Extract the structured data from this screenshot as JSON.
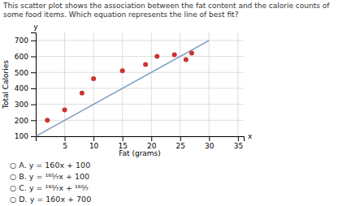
{
  "chart_data": {
    "type": "scatter",
    "title": "This scatter plot shows the association between the fat content and the calorie counts of some food items. Which equation represents the line of best fit?",
    "x_label": "Fat (grams)",
    "y_label": "Total Calories",
    "series": [
      {
        "type": "scatter",
        "color": "#cc3333",
        "marker": "circle",
        "x": [
          2,
          5,
          8,
          10,
          15,
          19,
          21,
          24,
          26,
          27
        ],
        "values": [
          200,
          265,
          370,
          460,
          510,
          550,
          600,
          610,
          580,
          620
        ]
      },
      {
        "type": "line",
        "color": "#7799bb",
        "line_style": "solid",
        "x": [
          0,
          30
        ],
        "values": [
          100,
          700
        ]
      }
    ],
    "xlim": [
      0,
      36
    ],
    "ylim": [
      100,
      750
    ],
    "xticks": [
      5,
      10,
      15,
      20,
      25,
      30,
      35
    ],
    "yticks": [
      100,
      200,
      300,
      400,
      500,
      600,
      700
    ],
    "grid": true,
    "annotations": [
      "x",
      "y",
      "○  A.  y = 160x + 100",
      "○  B.  y = ¹⁶⁰⁄₇x + 100",
      "○  C.  y = ¹⁶⁰⁄₇x + ¹⁶⁰⁄₇",
      "○  D.  y = 160x + 700"
    ]
  }
}
